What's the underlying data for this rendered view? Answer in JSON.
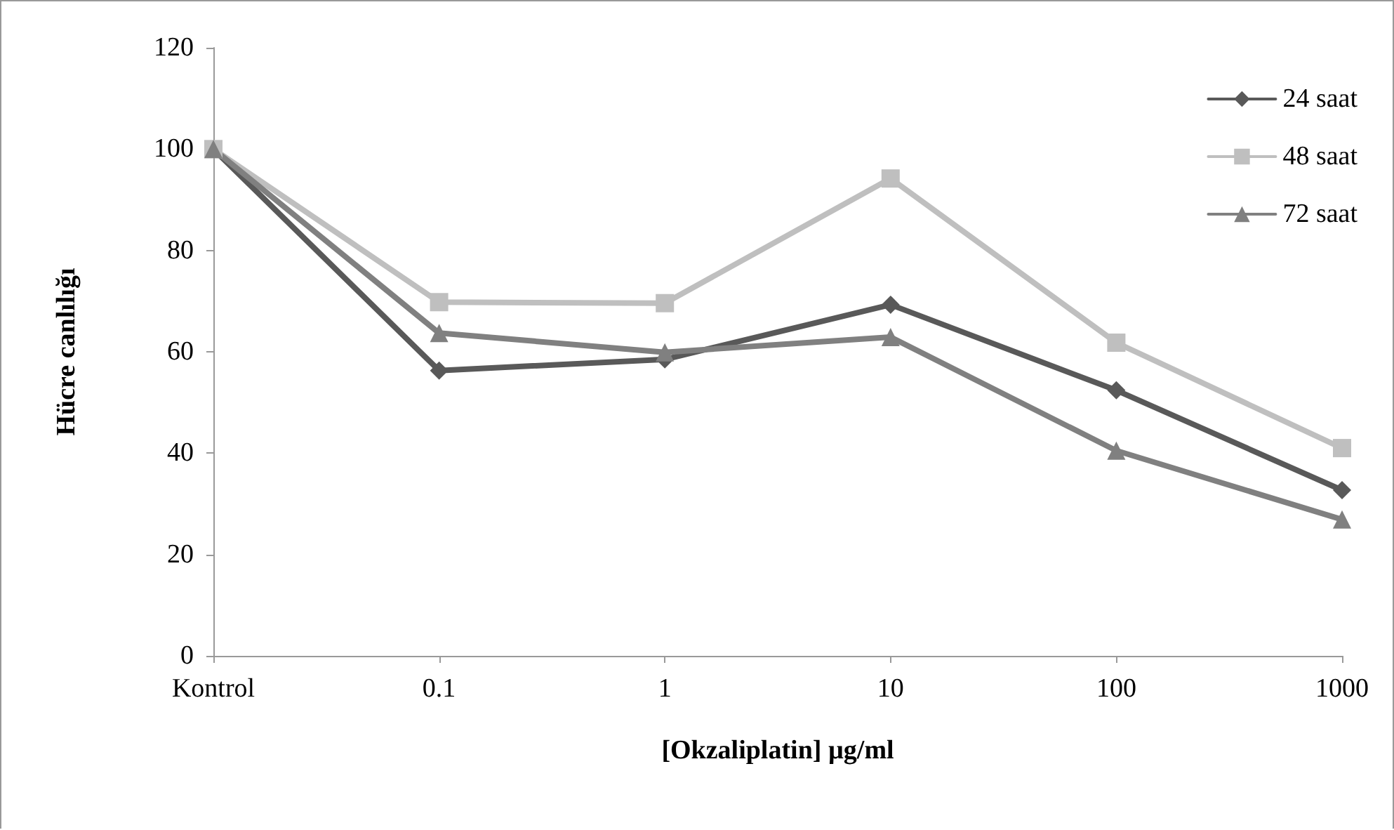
{
  "chart_data": {
    "type": "line",
    "xlabel": "[Okzaliplatin] µg/ml",
    "ylabel": "Hücre canlılığı",
    "categories": [
      "Kontrol",
      "0.1",
      "1",
      "10",
      "100",
      "1000"
    ],
    "series": [
      {
        "name": "24 saat",
        "color": "#595959",
        "marker": "diamond",
        "values": [
          100,
          56.3,
          58.5,
          69.3,
          52.4,
          32.7
        ]
      },
      {
        "name": "48 saat",
        "color": "#bfbfbf",
        "marker": "square",
        "values": [
          100,
          69.8,
          69.6,
          94.2,
          61.8,
          41
        ]
      },
      {
        "name": "72 saat",
        "color": "#808080",
        "marker": "triangle",
        "values": [
          100,
          63.7,
          59.9,
          62.9,
          40.5,
          26.9
        ]
      }
    ],
    "ylim": [
      0,
      120
    ],
    "yticks": [
      0,
      20,
      40,
      60,
      80,
      100,
      120
    ],
    "grid": false,
    "legend": "top right",
    "line_style": "solid"
  }
}
